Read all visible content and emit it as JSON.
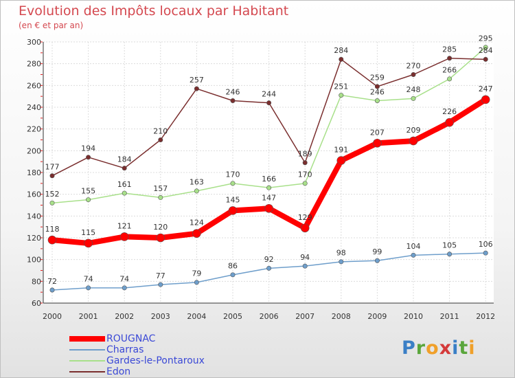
{
  "chart_data": {
    "type": "line",
    "title": "Evolution des Impôts locaux par Habitant",
    "subtitle": "(en € et par an)",
    "categories": [
      "2000",
      "2001",
      "2002",
      "2003",
      "2004",
      "2005",
      "2006",
      "2007",
      "2008",
      "2009",
      "2010",
      "2011",
      "2012"
    ],
    "ylim": [
      60,
      300
    ],
    "yticks": [
      60,
      80,
      100,
      120,
      140,
      160,
      180,
      200,
      220,
      240,
      260,
      280,
      300
    ],
    "grid": true,
    "series": [
      {
        "name": "ROUGNAC",
        "color": "#ff0000",
        "values": [
          118,
          115,
          121,
          120,
          124,
          145,
          147,
          129,
          191,
          207,
          209,
          226,
          247
        ]
      },
      {
        "name": "Charras",
        "color": "#6e9ecb",
        "values": [
          72,
          74,
          74,
          77,
          79,
          86,
          92,
          94,
          98,
          99,
          104,
          105,
          106
        ]
      },
      {
        "name": "Gardes-le-Pontaroux",
        "color": "#a8e08a",
        "values": [
          152,
          155,
          161,
          157,
          163,
          170,
          166,
          170,
          251,
          246,
          248,
          266,
          295
        ]
      },
      {
        "name": "Edon",
        "color": "#7a2e2e",
        "values": [
          177,
          194,
          184,
          210,
          257,
          246,
          244,
          189,
          284,
          259,
          270,
          285,
          284
        ]
      }
    ]
  },
  "logo": {
    "p": "P",
    "r": "r",
    "o": "o",
    "x": "x",
    "i": "i",
    "t": "t",
    "i2": "i"
  }
}
